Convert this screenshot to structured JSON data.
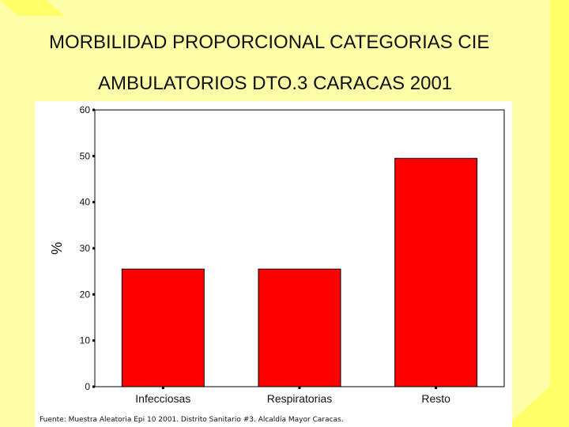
{
  "slide": {
    "title_line1": "MORBILIDAD PROPORCIONAL CATEGORIAS CIE",
    "title_line2": "AMBULATORIOS DTO.3 CARACAS 2001",
    "source": "Fuente: Muestra Aleatoria Epi 10 2001.  Distrito Sanitario #3. Alcaldía Mayor Caracas."
  },
  "colors": {
    "background": "#ffffa8",
    "bar": "#ff0000",
    "stripe": "#ffff66"
  },
  "chart_data": {
    "type": "bar",
    "title": "",
    "xlabel": "",
    "ylabel": "%",
    "categories": [
      "Infecciosas",
      "Respiratorias",
      "Resto"
    ],
    "values": [
      25.5,
      25.5,
      49.5
    ],
    "ylim": [
      0,
      60
    ],
    "yticks": [
      0,
      10,
      20,
      30,
      40,
      50,
      60
    ],
    "grid": false,
    "legend": "none"
  }
}
